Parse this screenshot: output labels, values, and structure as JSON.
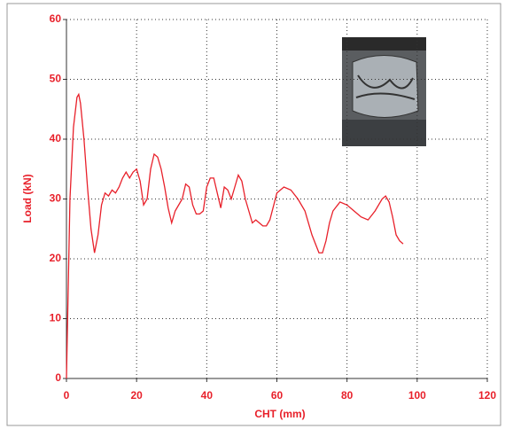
{
  "chart_data": {
    "type": "line",
    "x_label": "CHT (mm)",
    "y_label": "Load (kN)",
    "color": "#e8202a",
    "grid": true,
    "xlim": [
      0,
      120
    ],
    "xticks": [
      0,
      20,
      40,
      60,
      80,
      100,
      120
    ],
    "ylim": [
      0,
      60
    ],
    "yticks": [
      0,
      10,
      20,
      30,
      40,
      50,
      60
    ],
    "x": [
      0,
      0.5,
      1,
      2,
      3,
      3.5,
      4,
      5,
      6,
      7,
      8,
      9,
      10,
      11,
      12,
      13,
      14,
      15,
      16,
      17,
      18,
      19,
      20,
      21,
      22,
      23,
      24,
      25,
      26,
      27,
      28,
      29,
      30,
      31,
      32,
      33,
      34,
      35,
      36,
      37,
      38,
      39,
      40,
      41,
      42,
      43,
      44,
      45,
      46,
      47,
      48,
      49,
      50,
      51,
      52,
      53,
      54,
      55,
      56,
      57,
      58,
      60,
      61,
      62,
      64,
      66,
      68,
      70,
      72,
      73,
      74,
      75,
      76,
      78,
      80,
      82,
      84,
      86,
      88,
      90,
      91,
      92,
      93,
      94,
      95,
      96
    ],
    "values": [
      0,
      15,
      30,
      42,
      47,
      47.5,
      46,
      40,
      32,
      25,
      21,
      24,
      29,
      31,
      30.5,
      31.5,
      31,
      32,
      33.5,
      34.5,
      33.5,
      34.5,
      35,
      33,
      29,
      30,
      35,
      37.5,
      37,
      35,
      32,
      28.5,
      26,
      28,
      29,
      30,
      32.5,
      32,
      29,
      27.5,
      27.5,
      28,
      32,
      33.5,
      33.5,
      31,
      28.5,
      32,
      31.5,
      30,
      32,
      34,
      33,
      30,
      28,
      26,
      26.5,
      26,
      25.5,
      25.5,
      26.5,
      31,
      31.5,
      32,
      31.5,
      30,
      28,
      24,
      21,
      21,
      23,
      26,
      28,
      29.5,
      29,
      28,
      27,
      26.5,
      28,
      30,
      30.5,
      29.5,
      27,
      24,
      23,
      22.5
    ]
  }
}
